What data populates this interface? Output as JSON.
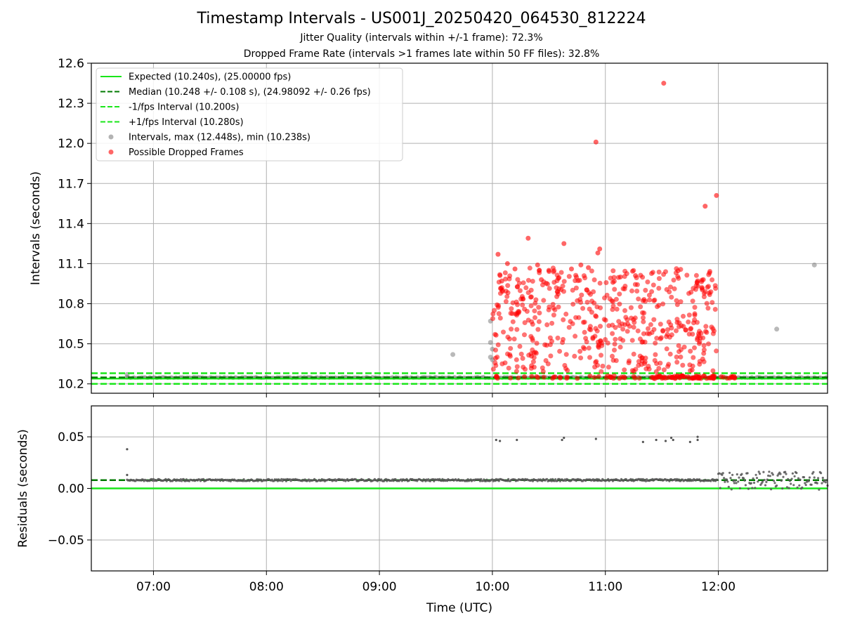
{
  "chart_data": [
    {
      "type": "scatter",
      "title": "Timestamp Intervals - US001J_20250420_064530_812224",
      "subtitle_1": "Jitter Quality (intervals within +/-1 frame): 72.3%",
      "subtitle_2": "Dropped Frame Rate (intervals >1 frames late within 50 FF files): 32.8%",
      "ylabel": "Intervals (seconds)",
      "xlim": [
        "06:27",
        "12:58"
      ],
      "ylim": [
        10.13,
        12.6
      ],
      "yticks": [
        10.2,
        10.5,
        10.8,
        11.1,
        11.4,
        11.7,
        12.0,
        12.3,
        12.6
      ],
      "ytick_labels": [
        "10.2",
        "10.5",
        "10.8",
        "11.1",
        "11.4",
        "11.7",
        "12.0",
        "12.3",
        "12.6"
      ],
      "grid": true,
      "legend_position": "top-left",
      "legend": [
        "Expected (10.240s), (25.00000 fps)",
        "Median (10.248 +/- 0.108 s), (24.98092 +/- 0.26 fps)",
        "-1/fps Interval (10.200s)",
        "+1/fps Interval (10.280s)",
        "Intervals, max (12.448s), min (10.238s)",
        "Possible Dropped Frames"
      ],
      "reference_lines": [
        {
          "name": "Expected (10.240s), (25.00000 fps)",
          "y": 10.24,
          "style": "solid",
          "color": "#19e619"
        },
        {
          "name": "Median (10.248 +/- 0.108 s), (24.98092 +/- 0.26 fps)",
          "y": 10.248,
          "style": "dashed",
          "color": "#007a00"
        },
        {
          "name": "-1/fps Interval (10.200s)",
          "y": 10.2,
          "style": "dashed",
          "color": "#19e619"
        },
        {
          "name": "+1/fps Interval (10.280s)",
          "y": 10.28,
          "style": "dashed",
          "color": "#19e619"
        }
      ],
      "series": [
        {
          "name": "Intervals, max (12.448s), min (10.238s)",
          "color": "#808080",
          "points": [
            [
              "06:46",
              10.27
            ],
            [
              "06:46",
              10.25
            ],
            [
              "09:39",
              10.42
            ],
            [
              "09:59",
              10.67
            ],
            [
              "09:59",
              10.51
            ],
            [
              "10:00",
              10.46
            ],
            [
              "09:59",
              10.4
            ],
            [
              "10:00",
              10.38
            ],
            [
              "12:31",
              10.61
            ],
            [
              "12:51",
              11.09
            ]
          ]
        },
        {
          "name": "Possible Dropped Frames",
          "color": "#ff0000",
          "points": [
            [
              "11:31",
              12.45
            ],
            [
              "10:55",
              12.01
            ],
            [
              "11:59",
              11.61
            ],
            [
              "11:53",
              11.53
            ],
            [
              "10:19",
              11.29
            ],
            [
              "10:38",
              11.25
            ],
            [
              "10:57",
              11.21
            ],
            [
              "10:56",
              11.18
            ],
            [
              "10:03",
              11.17
            ],
            [
              "10:08",
              11.1
            ],
            [
              "10:24",
              11.09
            ],
            [
              "10:47",
              11.09
            ],
            [
              "10:12",
              11.06
            ],
            [
              "10:30",
              11.05
            ],
            [
              "10:42",
              11.06
            ],
            [
              "10:51",
              11.07
            ],
            [
              "11:16",
              11.01
            ],
            [
              "11:08",
              11.0
            ],
            [
              "11:04",
              10.96
            ],
            [
              "10:05",
              10.97
            ],
            [
              "10:26",
              10.98
            ],
            [
              "10:35",
              10.99
            ],
            [
              "11:49",
              10.97
            ],
            [
              "11:52",
              10.98
            ]
          ],
          "band": {
            "time_range": [
              "10:00",
              "11:59"
            ],
            "y_range": [
              10.24,
              11.1
            ],
            "note": "dense cluster"
          }
        }
      ]
    },
    {
      "type": "scatter",
      "xlabel": "Time (UTC)",
      "ylabel": "Residuals (seconds)",
      "xlim": [
        "06:27",
        "12:58"
      ],
      "xticks": [
        "07:00",
        "08:00",
        "09:00",
        "10:00",
        "11:00",
        "12:00"
      ],
      "ylim": [
        -0.08,
        0.08
      ],
      "yticks": [
        0.05,
        0.0,
        -0.05
      ],
      "ytick_labels": [
        "0.05",
        "0.00",
        "−0.05"
      ],
      "grid": true,
      "reference_lines": [
        {
          "y": 0.0,
          "style": "solid",
          "color": "#19e619"
        },
        {
          "y": 0.008,
          "style": "dashed",
          "color": "#007a00"
        }
      ],
      "series": [
        {
          "name": "Residuals",
          "color": "#555555",
          "points": [
            [
              "06:46",
              0.038
            ],
            [
              "06:46",
              0.013
            ],
            [
              "10:02",
              0.047
            ],
            [
              "10:04",
              0.046
            ],
            [
              "10:13",
              0.047
            ],
            [
              "10:37",
              0.047
            ],
            [
              "10:38",
              0.049
            ],
            [
              "10:55",
              0.048
            ],
            [
              "11:20",
              0.045
            ],
            [
              "11:27",
              0.047
            ],
            [
              "11:32",
              0.046
            ],
            [
              "11:35",
              0.049
            ],
            [
              "11:36",
              0.047
            ],
            [
              "11:45",
              0.045
            ],
            [
              "11:49",
              0.05
            ],
            [
              "11:49",
              0.047
            ]
          ],
          "band": {
            "time_range": [
              "06:46",
              "12:58"
            ],
            "y_range": [
              -0.003,
              0.018
            ],
            "note": "dense near median"
          }
        }
      ]
    }
  ]
}
